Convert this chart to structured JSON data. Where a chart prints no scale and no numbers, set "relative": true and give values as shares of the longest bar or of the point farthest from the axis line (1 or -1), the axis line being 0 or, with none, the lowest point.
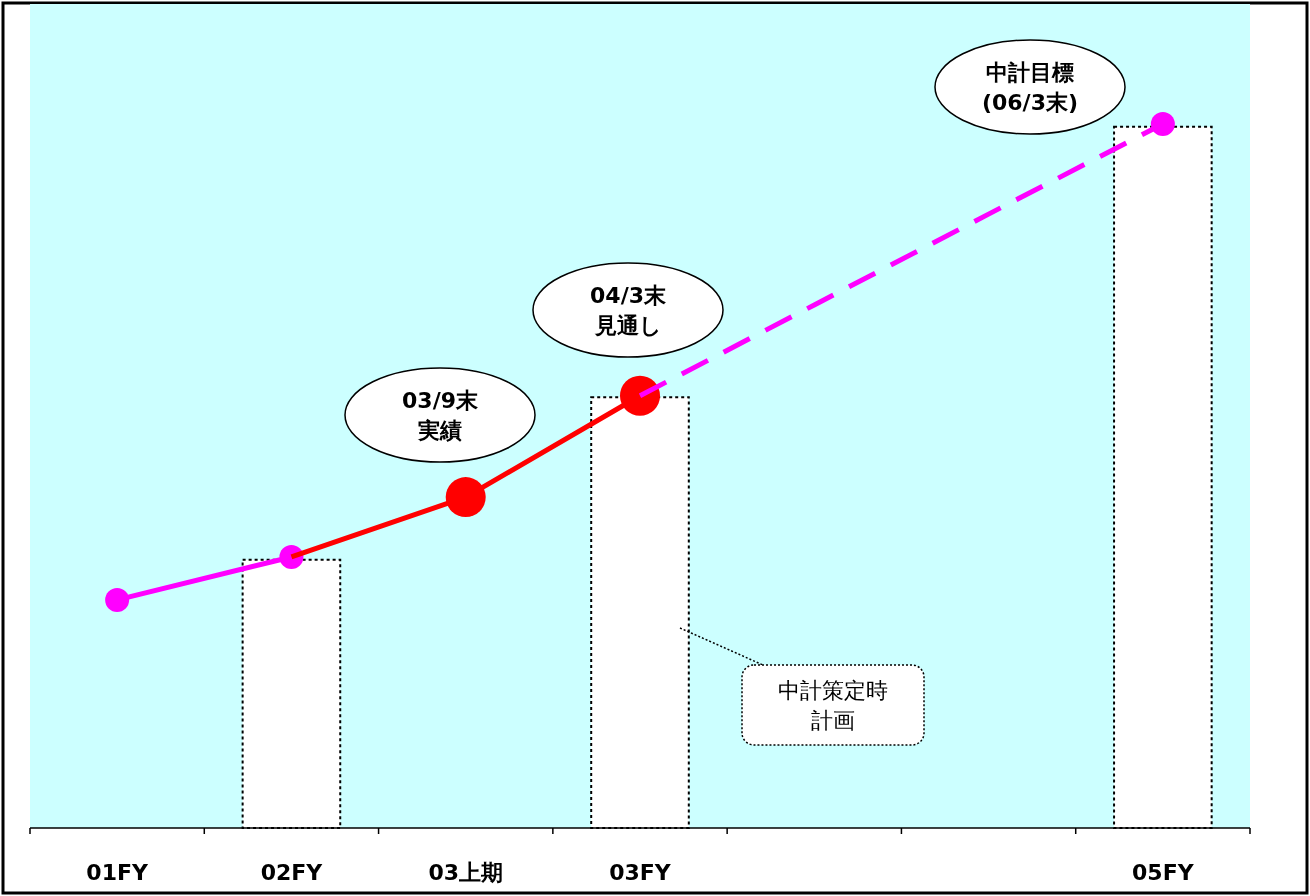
{
  "chart_data": {
    "type": "bar",
    "relative": true,
    "categories": [
      "01FY",
      "02FY",
      "03上期",
      "03FY",
      null,
      null,
      "05FY"
    ],
    "series": [
      {
        "color": "#ffffff",
        "line_style": "dotted",
        "values": [
          null,
          0.381,
          null,
          0.612,
          null,
          null,
          0.996
        ]
      },
      {
        "type": "scatter",
        "color": "#ff00ff",
        "marker": "circle",
        "values": [
          0.324,
          0.385,
          null,
          null,
          null,
          null,
          1.0
        ]
      },
      {
        "type": "scatter",
        "color": "#ff0000",
        "marker": "circle",
        "values": [
          null,
          null,
          0.47,
          0.614,
          null,
          null,
          null
        ]
      },
      {
        "type": "line",
        "color": "#ff00ff",
        "line_style": "solid",
        "values": [
          0.324,
          0.385,
          null,
          null,
          null,
          null,
          null
        ]
      },
      {
        "type": "line",
        "color": "#ff0000",
        "line_style": "solid",
        "values": [
          null,
          0.385,
          0.47,
          0.614,
          null,
          null,
          null
        ]
      },
      {
        "type": "line",
        "color": "#ff00ff",
        "line_style": "dashed",
        "values": [
          null,
          null,
          null,
          0.614,
          0.743,
          0.872,
          1.0
        ]
      }
    ],
    "annotations": [
      "03/9末実績",
      "04/3末見通し",
      "中計目標(06/3末)",
      "中計策定時計画"
    ]
  }
}
